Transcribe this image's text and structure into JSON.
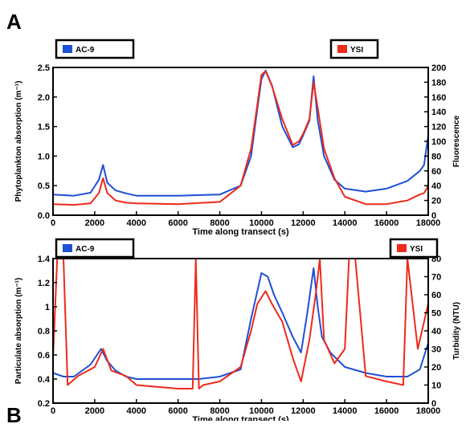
{
  "panel_labels": {
    "a": "A",
    "b": "B"
  },
  "colors": {
    "ac9": "#1f4fd6",
    "ysi": "#ee2a1b"
  },
  "chart_data": [
    {
      "type": "line",
      "panel": "A",
      "xlabel": "Time along transect (s)",
      "ylabel_left": "Phytoplankton absorption (m⁻¹)",
      "ylabel_right": "Fluorescence",
      "xlim": [
        0,
        18000
      ],
      "ylim_left": [
        0,
        2.5
      ],
      "ylim_right": [
        0,
        200
      ],
      "x_ticks": [
        "0",
        "2000",
        "4000",
        "6000",
        "8000",
        "10000",
        "12000",
        "14000",
        "16000",
        "18000"
      ],
      "y_ticks_left": [
        "0.0",
        "0.5",
        "1.0",
        "1.5",
        "2.0",
        "2.5"
      ],
      "y_ticks_right": [
        "0",
        "20",
        "40",
        "60",
        "80",
        "100",
        "120",
        "140",
        "160",
        "180",
        "200"
      ],
      "legend": [
        "AC-9",
        "YSI"
      ],
      "series": [
        {
          "name": "AC-9",
          "axis": "left",
          "color": "#1f4fd6",
          "x": [
            0,
            1000,
            1800,
            2200,
            2400,
            2600,
            3000,
            3500,
            4000,
            6000,
            8000,
            9000,
            9500,
            9800,
            10000,
            10200,
            10500,
            11000,
            11500,
            11800,
            12000,
            12300,
            12500,
            12700,
            13000,
            13500,
            14000,
            15000,
            16000,
            17000,
            17600,
            17800,
            18000
          ],
          "y": [
            0.35,
            0.33,
            0.38,
            0.6,
            0.85,
            0.55,
            0.42,
            0.37,
            0.33,
            0.33,
            0.35,
            0.5,
            1.0,
            1.8,
            2.3,
            2.45,
            2.2,
            1.5,
            1.15,
            1.2,
            1.35,
            1.6,
            2.35,
            1.6,
            1.0,
            0.6,
            0.45,
            0.4,
            0.45,
            0.58,
            0.75,
            0.85,
            1.35
          ]
        },
        {
          "name": "YSI",
          "axis": "right",
          "color": "#ee2a1b",
          "x": [
            0,
            1000,
            1800,
            2200,
            2400,
            2600,
            3000,
            3500,
            4000,
            6000,
            8000,
            9000,
            9500,
            9800,
            10000,
            10200,
            10500,
            11000,
            11500,
            11800,
            12000,
            12300,
            12500,
            12700,
            13000,
            13500,
            14000,
            15000,
            16000,
            17000,
            17600,
            17800,
            18000
          ],
          "y": [
            15,
            14,
            16,
            30,
            50,
            30,
            20,
            17,
            16,
            15,
            18,
            40,
            90,
            150,
            190,
            195,
            175,
            130,
            95,
            100,
            110,
            130,
            180,
            145,
            90,
            50,
            25,
            15,
            15,
            20,
            28,
            30,
            40
          ]
        }
      ]
    },
    {
      "type": "line",
      "panel": "A",
      "xlabel": "Time along transect (s)",
      "ylabel_left": "Particulate absorption (m⁻¹)",
      "ylabel_right": "Turbidity (NTU)",
      "xlim": [
        0,
        18000
      ],
      "ylim_left": [
        0.2,
        1.4
      ],
      "ylim_right": [
        0,
        80
      ],
      "x_ticks": [
        "0",
        "2000",
        "4000",
        "6000",
        "8000",
        "10000",
        "12000",
        "14000",
        "16000",
        "18000"
      ],
      "y_ticks_left": [
        "0.2",
        "0.4",
        "0.6",
        "0.8",
        "1",
        "1.2",
        "1.4"
      ],
      "y_ticks_right": [
        "0",
        "10",
        "20",
        "30",
        "40",
        "50",
        "60",
        "70",
        "80"
      ],
      "legend": [
        "AC-9",
        "YSI"
      ],
      "series": [
        {
          "name": "AC-9",
          "axis": "left",
          "color": "#1f4fd6",
          "x": [
            0,
            500,
            1000,
            1800,
            2300,
            2600,
            3000,
            3500,
            4000,
            6000,
            7000,
            8000,
            9000,
            9500,
            10000,
            10300,
            10600,
            11000,
            11500,
            11900,
            12200,
            12500,
            12700,
            12900,
            13300,
            14000,
            15000,
            16000,
            17000,
            17600,
            18000
          ],
          "y": [
            0.45,
            0.42,
            0.42,
            0.52,
            0.65,
            0.55,
            0.47,
            0.42,
            0.4,
            0.4,
            0.4,
            0.42,
            0.48,
            0.9,
            1.28,
            1.25,
            1.1,
            0.95,
            0.75,
            0.62,
            0.95,
            1.32,
            1.0,
            0.75,
            0.62,
            0.5,
            0.45,
            0.42,
            0.42,
            0.48,
            0.7
          ]
        },
        {
          "name": "YSI",
          "axis": "right",
          "color": "#ee2a1b",
          "x": [
            0,
            200,
            350,
            500,
            700,
            900,
            1200,
            2000,
            2400,
            2800,
            3500,
            4000,
            6000,
            6700,
            6850,
            7000,
            7200,
            8000,
            9000,
            9500,
            9800,
            10200,
            10500,
            11000,
            11500,
            11900,
            12300,
            12600,
            12800,
            13000,
            13500,
            14000,
            14200,
            14500,
            15000,
            16000,
            16800,
            17000,
            17500,
            18000
          ],
          "y": [
            25,
            80,
            80,
            80,
            10,
            12,
            15,
            20,
            30,
            18,
            15,
            10,
            8,
            8,
            80,
            8,
            10,
            12,
            20,
            40,
            55,
            62,
            55,
            45,
            25,
            12,
            35,
            60,
            80,
            35,
            22,
            30,
            80,
            80,
            15,
            12,
            10,
            80,
            30,
            55
          ]
        }
      ]
    }
  ]
}
